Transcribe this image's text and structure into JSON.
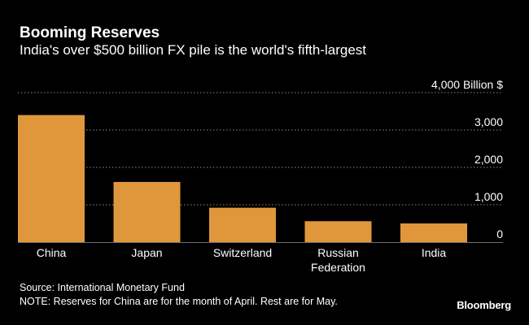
{
  "chart_data": {
    "type": "bar",
    "title": "Booming Reserves",
    "subtitle": "India's over $500 billion FX pile is the world's fifth-largest",
    "unit_label": "4,000 Billion $",
    "categories": [
      [
        "China"
      ],
      [
        "Japan"
      ],
      [
        "Switzerland"
      ],
      [
        "Russian",
        "Federation"
      ],
      [
        "India"
      ]
    ],
    "values": [
      3400,
      1610,
      920,
      560,
      500
    ],
    "ylim": [
      0,
      4000
    ],
    "yticks": [
      {
        "value": 0,
        "label": "0"
      },
      {
        "value": 1000,
        "label": "1,000"
      },
      {
        "value": 2000,
        "label": "2,000"
      },
      {
        "value": 3000,
        "label": "3,000"
      },
      {
        "value": 4000,
        "label": "4,000 Billion $"
      }
    ],
    "grid": true,
    "bar_color": "#E0973C",
    "grid_color": "#8a8a8a"
  },
  "footer": {
    "source": "Source: International Monetary Fund",
    "note": "NOTE: Reserves for China are for the month of April. Rest are for May."
  },
  "brand": "Bloomberg"
}
